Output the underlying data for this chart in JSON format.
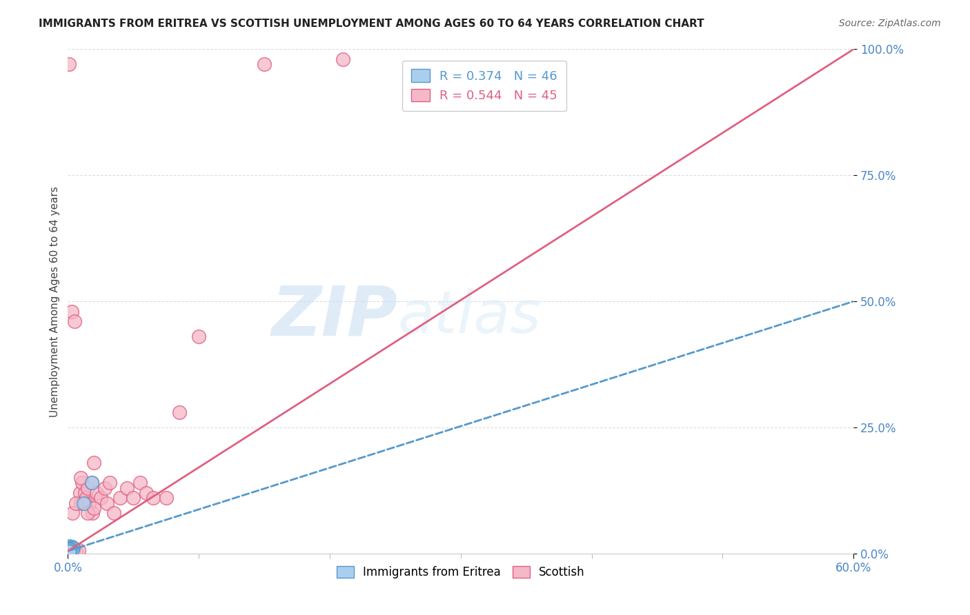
{
  "title": "IMMIGRANTS FROM ERITREA VS SCOTTISH UNEMPLOYMENT AMONG AGES 60 TO 64 YEARS CORRELATION CHART",
  "source": "Source: ZipAtlas.com",
  "ylabel": "Unemployment Among Ages 60 to 64 years",
  "xlim": [
    0.0,
    0.6
  ],
  "ylim": [
    0.0,
    1.0
  ],
  "xticks": [
    0.0,
    0.6
  ],
  "xticklabels": [
    "0.0%",
    "60.0%"
  ],
  "yticks": [
    0.0,
    0.25,
    0.5,
    0.75,
    1.0
  ],
  "yticklabels": [
    "0.0%",
    "25.0%",
    "50.0%",
    "75.0%",
    "100.0%"
  ],
  "blue_R": 0.374,
  "blue_N": 46,
  "pink_R": 0.544,
  "pink_N": 45,
  "blue_color": "#aacfee",
  "pink_color": "#f5b8c8",
  "blue_edge_color": "#5599cc",
  "pink_edge_color": "#e06080",
  "blue_line_color": "#5599cc",
  "pink_line_color": "#e06080",
  "watermark_text": "ZIPatlas",
  "blue_scatter_x": [
    0.001,
    0.0015,
    0.001,
    0.002,
    0.0018,
    0.0022,
    0.001,
    0.0025,
    0.002,
    0.0015,
    0.001,
    0.003,
    0.002,
    0.0018,
    0.0035,
    0.0012,
    0.0025,
    0.004,
    0.0015,
    0.001,
    0.002,
    0.0012,
    0.003,
    0.0015,
    0.001,
    0.0025,
    0.0012,
    0.002,
    0.0015,
    0.0035,
    0.0012,
    0.001,
    0.0015,
    0.0025,
    0.0012,
    0.002,
    0.001,
    0.003,
    0.0015,
    0.0012,
    0.012,
    0.018,
    0.001,
    0.0012,
    0.0015,
    0.001
  ],
  "blue_scatter_y": [
    0.005,
    0.008,
    0.012,
    0.006,
    0.01,
    0.007,
    0.015,
    0.009,
    0.004,
    0.011,
    0.006,
    0.013,
    0.005,
    0.008,
    0.012,
    0.004,
    0.007,
    0.01,
    0.005,
    0.009,
    0.006,
    0.004,
    0.009,
    0.005,
    0.006,
    0.008,
    0.004,
    0.006,
    0.005,
    0.01,
    0.006,
    0.005,
    0.008,
    0.006,
    0.004,
    0.009,
    0.006,
    0.005,
    0.008,
    0.004,
    0.1,
    0.14,
    0.006,
    0.008,
    0.005,
    0.004
  ],
  "pink_scatter_x": [
    0.0008,
    0.0015,
    0.001,
    0.002,
    0.0018,
    0.004,
    0.003,
    0.005,
    0.006,
    0.008,
    0.009,
    0.01,
    0.011,
    0.013,
    0.014,
    0.015,
    0.016,
    0.018,
    0.019,
    0.02,
    0.022,
    0.025,
    0.028,
    0.03,
    0.032,
    0.035,
    0.04,
    0.045,
    0.05,
    0.055,
    0.06,
    0.065,
    0.075,
    0.085,
    0.0015,
    0.0035,
    0.006,
    0.01,
    0.013,
    0.015,
    0.02,
    0.1,
    0.15,
    0.21,
    0.001
  ],
  "pink_scatter_y": [
    0.005,
    0.006,
    0.01,
    0.008,
    0.006,
    0.01,
    0.48,
    0.46,
    0.005,
    0.006,
    0.12,
    0.1,
    0.14,
    0.12,
    0.11,
    0.13,
    0.1,
    0.14,
    0.08,
    0.18,
    0.12,
    0.11,
    0.13,
    0.1,
    0.14,
    0.08,
    0.11,
    0.13,
    0.11,
    0.14,
    0.12,
    0.11,
    0.11,
    0.28,
    0.01,
    0.08,
    0.1,
    0.15,
    0.1,
    0.08,
    0.09,
    0.43,
    0.97,
    0.98,
    0.97
  ],
  "blue_trend_x": [
    0.0,
    0.6
  ],
  "blue_trend_y": [
    0.005,
    0.5
  ],
  "pink_trend_x": [
    0.0,
    0.6
  ],
  "pink_trend_y": [
    0.005,
    1.0
  ]
}
